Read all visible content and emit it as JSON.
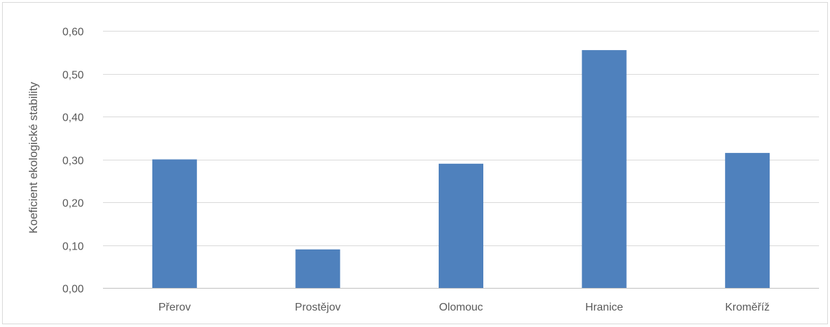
{
  "chart_data": {
    "type": "bar",
    "title": "",
    "xlabel": "",
    "ylabel": "Koeficient ekologické stability",
    "categories": [
      "Přerov",
      "Prostějov",
      "Olomouc",
      "Hranice",
      "Kroměříž"
    ],
    "values": [
      0.3,
      0.09,
      0.29,
      0.555,
      0.315
    ],
    "ylim": [
      0,
      0.6
    ],
    "yticks": [
      0,
      0.1,
      0.2,
      0.3,
      0.4,
      0.5,
      0.6
    ],
    "ytick_labels": [
      "0,00",
      "0,10",
      "0,20",
      "0,30",
      "0,40",
      "0,50",
      "0,60"
    ],
    "grid": true,
    "legend": "none",
    "colors": {
      "bar": "#4f81bd",
      "grid": "#d9d9d9",
      "axis": "#bfbfbf",
      "text": "#595959"
    }
  }
}
